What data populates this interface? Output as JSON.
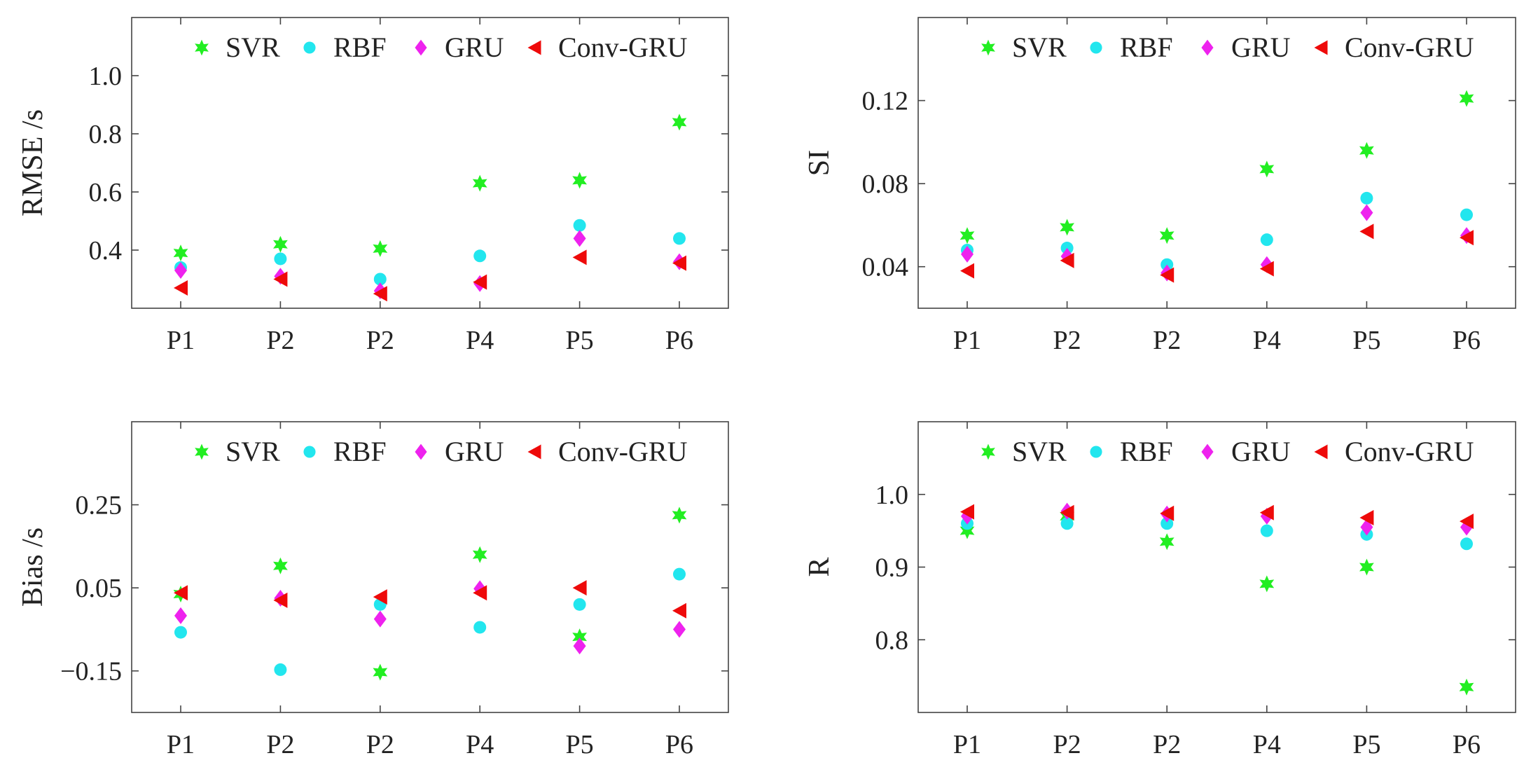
{
  "chart_data": [
    {
      "type": "scatter",
      "id": "rmse",
      "ylabel": "RMSE /s",
      "xlabel": "",
      "categories": [
        "P1",
        "P2",
        "P2",
        "P4",
        "P5",
        "P6"
      ],
      "ylim": [
        0.2,
        1.2
      ],
      "yticks": [
        0.4,
        0.6,
        0.8,
        1.0
      ],
      "ytick_labels": [
        "0.4",
        "0.6",
        "0.8",
        "1.0"
      ],
      "legend": "top",
      "series": [
        {
          "name": "SVR",
          "marker": "star",
          "color": "#22ee22",
          "values": [
            0.39,
            0.42,
            0.405,
            0.63,
            0.64,
            0.84
          ]
        },
        {
          "name": "RBF",
          "marker": "circle",
          "color": "#22e6ee",
          "values": [
            0.34,
            0.37,
            0.3,
            0.38,
            0.485,
            0.44
          ]
        },
        {
          "name": "GRU",
          "marker": "diamond",
          "color": "#ee22ee",
          "values": [
            0.33,
            0.31,
            0.26,
            0.285,
            0.44,
            0.36
          ]
        },
        {
          "name": "Conv-GRU",
          "marker": "triangle-left",
          "color": "#ee0a0a",
          "values": [
            0.27,
            0.3,
            0.25,
            0.29,
            0.375,
            0.355
          ]
        }
      ]
    },
    {
      "type": "scatter",
      "id": "si",
      "ylabel": "SI",
      "xlabel": "",
      "categories": [
        "P1",
        "P2",
        "P2",
        "P4",
        "P5",
        "P6"
      ],
      "ylim": [
        0.02,
        0.16
      ],
      "yticks": [
        0.04,
        0.08,
        0.12
      ],
      "ytick_labels": [
        "0.04",
        "0.08",
        "0.12"
      ],
      "legend": "top",
      "series": [
        {
          "name": "SVR",
          "marker": "star",
          "color": "#22ee22",
          "values": [
            0.055,
            0.059,
            0.055,
            0.087,
            0.096,
            0.121
          ]
        },
        {
          "name": "RBF",
          "marker": "circle",
          "color": "#22e6ee",
          "values": [
            0.048,
            0.049,
            0.041,
            0.053,
            0.073,
            0.065
          ]
        },
        {
          "name": "GRU",
          "marker": "diamond",
          "color": "#ee22ee",
          "values": [
            0.046,
            0.045,
            0.037,
            0.041,
            0.066,
            0.055
          ]
        },
        {
          "name": "Conv-GRU",
          "marker": "triangle-left",
          "color": "#ee0a0a",
          "values": [
            0.038,
            0.043,
            0.036,
            0.039,
            0.057,
            0.054
          ]
        }
      ]
    },
    {
      "type": "scatter",
      "id": "bias",
      "ylabel": "Bias /s",
      "xlabel": "",
      "categories": [
        "P1",
        "P2",
        "P2",
        "P4",
        "P5",
        "P6"
      ],
      "ylim": [
        -0.25,
        0.45
      ],
      "yticks": [
        -0.15,
        0.05,
        0.25
      ],
      "ytick_labels": [
        "−0.15",
        "0.05",
        "0.25"
      ],
      "legend": "top",
      "series": [
        {
          "name": "SVR",
          "marker": "star",
          "color": "#22ee22",
          "values": [
            0.035,
            0.103,
            -0.153,
            0.13,
            -0.068,
            0.225
          ]
        },
        {
          "name": "RBF",
          "marker": "circle",
          "color": "#22e6ee",
          "values": [
            -0.057,
            -0.147,
            0.01,
            -0.045,
            0.01,
            0.083
          ]
        },
        {
          "name": "GRU",
          "marker": "diamond",
          "color": "#ee22ee",
          "values": [
            -0.017,
            0.025,
            -0.025,
            0.048,
            -0.09,
            -0.05
          ]
        },
        {
          "name": "Conv-GRU",
          "marker": "triangle-left",
          "color": "#ee0a0a",
          "values": [
            0.038,
            0.02,
            0.028,
            0.038,
            0.05,
            -0.005
          ]
        }
      ]
    },
    {
      "type": "scatter",
      "id": "r",
      "ylabel": "R",
      "xlabel": "",
      "categories": [
        "P1",
        "P2",
        "P2",
        "P4",
        "P5",
        "P6"
      ],
      "ylim": [
        0.7,
        1.1
      ],
      "yticks": [
        0.8,
        0.9,
        1.0
      ],
      "ytick_labels": [
        "0.8",
        "0.9",
        "1.0"
      ],
      "legend": "top",
      "series": [
        {
          "name": "SVR",
          "marker": "star",
          "color": "#22ee22",
          "values": [
            0.95,
            0.97,
            0.935,
            0.877,
            0.9,
            0.735
          ]
        },
        {
          "name": "RBF",
          "marker": "circle",
          "color": "#22e6ee",
          "values": [
            0.96,
            0.96,
            0.96,
            0.95,
            0.945,
            0.932
          ]
        },
        {
          "name": "GRU",
          "marker": "diamond",
          "color": "#ee22ee",
          "values": [
            0.97,
            0.977,
            0.973,
            0.97,
            0.955,
            0.955
          ]
        },
        {
          "name": "Conv-GRU",
          "marker": "triangle-left",
          "color": "#ee0a0a",
          "values": [
            0.976,
            0.975,
            0.974,
            0.975,
            0.968,
            0.963
          ]
        }
      ]
    }
  ]
}
